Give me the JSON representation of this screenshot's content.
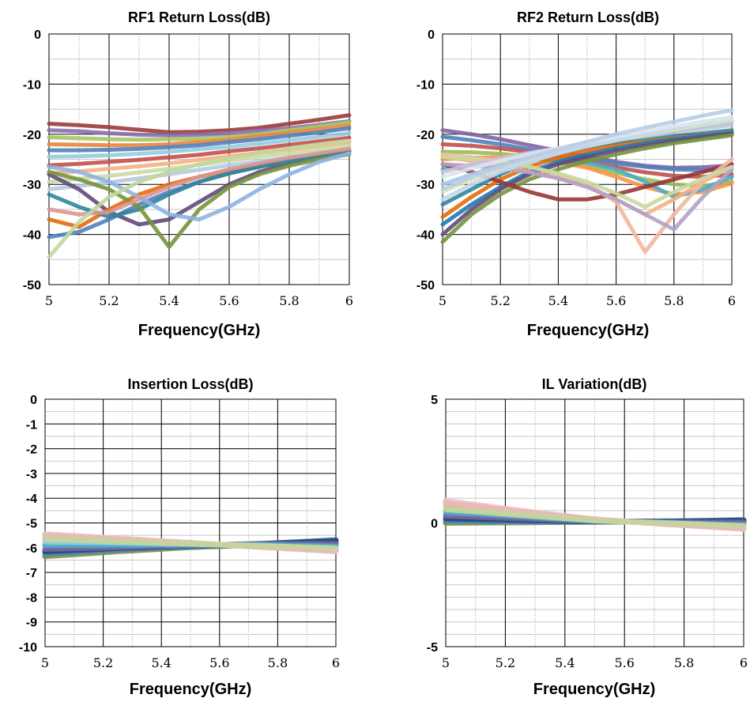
{
  "chart_data": [
    {
      "type": "line",
      "title": "RF1 Return Loss(dB)",
      "xlabel": "Frequency(GHz)",
      "ylabel": "",
      "xlim": [
        5,
        6
      ],
      "ylim": [
        -50,
        0
      ],
      "x_ticks": [
        5,
        5.2,
        5.4,
        5.6,
        5.8,
        6
      ],
      "x_tick_labels": [
        "5",
        "5.2",
        "5.4",
        "5.6",
        "5.8",
        "6"
      ],
      "y_ticks": [
        0,
        -10,
        -20,
        -30,
        -40,
        -50
      ],
      "y_tick_labels": [
        "0",
        "-10",
        "-20",
        "-30",
        "-40",
        "-50"
      ],
      "grid": true,
      "legend": "none",
      "x": [
        5,
        5.1,
        5.2,
        5.3,
        5.4,
        5.5,
        5.6,
        5.7,
        5.8,
        5.9,
        6
      ],
      "series": [
        {
          "values": [
            -17.9,
            -18.2,
            -18.6,
            -19.1,
            -19.6,
            -19.5,
            -19.2,
            -18.7,
            -17.9,
            -17.1,
            -16.2
          ],
          "color": "#9b3b3b"
        },
        {
          "values": [
            -19.2,
            -19.4,
            -19.8,
            -20.1,
            -20.2,
            -20.1,
            -19.8,
            -19.3,
            -18.8,
            -18.1,
            -17.4
          ],
          "color": "#8a6fae"
        },
        {
          "values": [
            -20.6,
            -20.8,
            -21.0,
            -21.1,
            -21.0,
            -20.9,
            -20.5,
            -20.0,
            -19.2,
            -18.4,
            -17.6
          ],
          "color": "#a7c464"
        },
        {
          "values": [
            -22.0,
            -22.1,
            -22.2,
            -22.2,
            -22.0,
            -21.6,
            -21.1,
            -20.4,
            -19.7,
            -19.0,
            -18.3
          ],
          "color": "#e9853d"
        },
        {
          "values": [
            -23.2,
            -23.2,
            -23.1,
            -22.9,
            -22.6,
            -22.2,
            -21.6,
            -21.0,
            -20.3,
            -19.6,
            -18.8
          ],
          "color": "#4f81bd"
        },
        {
          "values": [
            -24.5,
            -24.4,
            -24.2,
            -23.9,
            -23.5,
            -23.0,
            -22.5,
            -21.9,
            -21.2,
            -20.5,
            -19.8
          ],
          "color": "#93cddd"
        },
        {
          "values": [
            -26.2,
            -25.9,
            -25.5,
            -25.1,
            -24.6,
            -24.1,
            -23.4,
            -22.8,
            -22.1,
            -21.4,
            -20.7
          ],
          "color": "#c0504d"
        },
        {
          "values": [
            -27.8,
            -27.4,
            -26.9,
            -26.4,
            -25.8,
            -25.1,
            -24.4,
            -23.7,
            -23.0,
            -22.3,
            -21.6
          ],
          "color": "#f4b183"
        },
        {
          "values": [
            -29.5,
            -28.9,
            -28.3,
            -27.6,
            -26.9,
            -26.1,
            -25.3,
            -24.5,
            -23.8,
            -23.0,
            -22.3
          ],
          "color": "#c9dba4"
        },
        {
          "values": [
            -31.0,
            -30.3,
            -29.6,
            -28.8,
            -28.0,
            -27.1,
            -26.2,
            -25.4,
            -24.6,
            -23.8,
            -23.0
          ],
          "color": "#b7c9e2"
        },
        {
          "values": [
            -28.0,
            -31.0,
            -35.5,
            -38.0,
            -37.0,
            -33.5,
            -30.0,
            -27.5,
            -25.8,
            -24.5,
            -23.5
          ],
          "color": "#604a7b"
        },
        {
          "values": [
            -40.5,
            -39.5,
            -37.0,
            -34.0,
            -31.5,
            -29.5,
            -27.8,
            -26.5,
            -25.3,
            -24.3,
            -23.4
          ],
          "color": "#4f81bd"
        },
        {
          "values": [
            -37.0,
            -38.5,
            -35.0,
            -32.0,
            -30.0,
            -28.5,
            -27.3,
            -26.2,
            -25.2,
            -24.3,
            -23.5
          ],
          "color": "#e46c0a"
        },
        {
          "values": [
            -32.0,
            -34.5,
            -36.5,
            -35.0,
            -32.0,
            -29.5,
            -27.8,
            -26.5,
            -25.3,
            -24.3,
            -23.4
          ],
          "color": "#31859c"
        },
        {
          "values": [
            -27.5,
            -29.0,
            -31.0,
            -34.5,
            -42.5,
            -35.0,
            -30.5,
            -28.0,
            -26.3,
            -25.0,
            -24.0
          ],
          "color": "#77933c"
        },
        {
          "values": [
            -26.5,
            -27.5,
            -29.5,
            -32.5,
            -36.0,
            -37.0,
            -34.5,
            -31.0,
            -28.0,
            -25.5,
            -23.8
          ],
          "color": "#8db3e2"
        },
        {
          "values": [
            -35.0,
            -36.0,
            -35.5,
            -33.0,
            -30.5,
            -28.5,
            -27.0,
            -25.8,
            -24.7,
            -23.8,
            -22.9
          ],
          "color": "#d99694"
        },
        {
          "values": [
            -44.5,
            -37.5,
            -32.5,
            -29.5,
            -27.5,
            -26.0,
            -24.8,
            -23.7,
            -22.8,
            -22.0,
            -21.3
          ],
          "color": "#c3d69b"
        }
      ]
    },
    {
      "type": "line",
      "title": "RF2 Return Loss(dB)",
      "xlabel": "Frequency(GHz)",
      "ylabel": "",
      "xlim": [
        5,
        6
      ],
      "ylim": [
        -50,
        0
      ],
      "x_ticks": [
        5,
        5.2,
        5.4,
        5.6,
        5.8,
        6
      ],
      "x_tick_labels": [
        "5",
        "5.2",
        "5.4",
        "5.6",
        "5.8",
        "6"
      ],
      "y_ticks": [
        0,
        -10,
        -20,
        -30,
        -40,
        -50
      ],
      "y_tick_labels": [
        "0",
        "-10",
        "-20",
        "-30",
        "-40",
        "-50"
      ],
      "grid": true,
      "legend": "none",
      "x": [
        5,
        5.1,
        5.2,
        5.3,
        5.4,
        5.5,
        5.6,
        5.7,
        5.8,
        5.9,
        6
      ],
      "series": [
        {
          "values": [
            -19.2,
            -20.0,
            -21.0,
            -22.2,
            -23.3,
            -24.4,
            -25.5,
            -26.3,
            -26.7,
            -26.6,
            -26.2
          ],
          "color": "#8064a2"
        },
        {
          "values": [
            -20.5,
            -21.2,
            -22.0,
            -23.0,
            -24.0,
            -24.9,
            -25.8,
            -26.5,
            -27.0,
            -27.2,
            -27.0
          ],
          "color": "#4f81bd"
        },
        {
          "values": [
            -22.0,
            -22.3,
            -22.8,
            -23.6,
            -24.5,
            -25.5,
            -26.6,
            -27.6,
            -28.3,
            -28.5,
            -28.0
          ],
          "color": "#c0504d"
        },
        {
          "values": [
            -23.5,
            -23.6,
            -23.9,
            -24.5,
            -25.3,
            -26.4,
            -27.7,
            -29.0,
            -30.0,
            -30.3,
            -29.5
          ],
          "color": "#9bbb59"
        },
        {
          "values": [
            -25.0,
            -24.7,
            -24.6,
            -24.8,
            -25.5,
            -26.7,
            -28.5,
            -30.5,
            -32.0,
            -31.5,
            -29.8
          ],
          "color": "#f79646"
        },
        {
          "values": [
            -27.0,
            -26.1,
            -25.4,
            -25.0,
            -25.1,
            -25.7,
            -27.0,
            -29.5,
            -32.5,
            -31.0,
            -28.5
          ],
          "color": "#4bacc6"
        },
        {
          "values": [
            -34.0,
            -31.0,
            -28.0,
            -25.5,
            -23.8,
            -22.6,
            -21.7,
            -21.0,
            -20.4,
            -19.8,
            -19.2
          ],
          "color": "#31859c"
        },
        {
          "values": [
            -36.5,
            -32.5,
            -29.0,
            -26.5,
            -24.6,
            -23.3,
            -22.3,
            -21.5,
            -20.8,
            -20.2,
            -19.6
          ],
          "color": "#e46c0a"
        },
        {
          "values": [
            -38.0,
            -34.0,
            -30.5,
            -27.5,
            -25.5,
            -24.0,
            -22.8,
            -21.8,
            -21.0,
            -20.3,
            -19.7
          ],
          "color": "#1f7ab0"
        },
        {
          "values": [
            -40.0,
            -35.0,
            -31.0,
            -28.0,
            -26.0,
            -24.5,
            -23.3,
            -22.3,
            -21.4,
            -20.6,
            -19.9
          ],
          "color": "#604a7b"
        },
        {
          "values": [
            -41.5,
            -36.0,
            -32.0,
            -29.0,
            -27.0,
            -25.3,
            -24.0,
            -22.8,
            -21.8,
            -21.0,
            -20.2
          ],
          "color": "#77933c"
        },
        {
          "values": [
            -26.0,
            -27.5,
            -29.5,
            -31.5,
            -33.0,
            -33.0,
            -32.0,
            -30.5,
            -29.0,
            -27.5,
            -26.0
          ],
          "color": "#953735"
        },
        {
          "values": [
            -24.5,
            -25.3,
            -26.3,
            -27.5,
            -28.8,
            -30.5,
            -33.0,
            -36.0,
            -33.0,
            -29.5,
            -26.5
          ],
          "color": "#f4b183"
        },
        {
          "values": [
            -24.0,
            -24.6,
            -25.4,
            -26.5,
            -28.0,
            -30.0,
            -33.5,
            -43.5,
            -36.0,
            -29.5,
            -25.0
          ],
          "color": "#f2b8a0"
        },
        {
          "values": [
            -26.0,
            -26.3,
            -26.8,
            -27.6,
            -28.8,
            -30.5,
            -33.0,
            -36.0,
            -39.0,
            -32.5,
            -27.0
          ],
          "color": "#b2a1c7"
        },
        {
          "values": [
            -24.5,
            -24.9,
            -25.5,
            -26.5,
            -27.8,
            -29.5,
            -31.8,
            -34.5,
            -31.5,
            -28.8,
            -26.5
          ],
          "color": "#c6d9a0"
        },
        {
          "values": [
            -27.5,
            -26.0,
            -24.8,
            -23.7,
            -22.8,
            -21.9,
            -21.1,
            -20.4,
            -19.6,
            -18.9,
            -18.2
          ],
          "color": "#ccc1da"
        },
        {
          "values": [
            -30.0,
            -28.0,
            -26.3,
            -24.8,
            -23.5,
            -22.3,
            -21.2,
            -20.2,
            -19.3,
            -18.4,
            -17.6
          ],
          "color": "#a5c8e4"
        },
        {
          "values": [
            -31.5,
            -29.0,
            -27.0,
            -25.3,
            -23.8,
            -22.4,
            -21.2,
            -20.1,
            -19.1,
            -18.1,
            -17.2
          ],
          "color": "#d7e4bd"
        },
        {
          "values": [
            -33.0,
            -30.0,
            -27.5,
            -25.5,
            -23.8,
            -22.3,
            -21.0,
            -19.8,
            -18.7,
            -17.6,
            -16.6
          ],
          "color": "#c5d5ea"
        },
        {
          "values": [
            -28.5,
            -26.8,
            -25.3,
            -24.0,
            -22.8,
            -21.6,
            -20.5,
            -19.4,
            -18.4,
            -17.5,
            -16.6
          ],
          "color": "#dce6f2"
        },
        {
          "values": [
            -31.0,
            -28.5,
            -26.5,
            -24.6,
            -23.0,
            -21.5,
            -20.0,
            -18.7,
            -17.5,
            -16.3,
            -15.2
          ],
          "color": "#b9cde5"
        }
      ]
    },
    {
      "type": "line",
      "title": "Insertion Loss(dB)",
      "xlabel": "Frequency(GHz)",
      "ylabel": "",
      "xlim": [
        5,
        6
      ],
      "ylim": [
        -10,
        0
      ],
      "x_ticks": [
        5,
        5.2,
        5.4,
        5.6,
        5.8,
        6
      ],
      "x_tick_labels": [
        "5",
        "5.2",
        "5.4",
        "5.6",
        "5.8",
        "6"
      ],
      "y_ticks": [
        0,
        -1,
        -2,
        -3,
        -4,
        -5,
        -6,
        -7,
        -8,
        -9,
        -10
      ],
      "y_tick_labels": [
        "0",
        "-1",
        "-2",
        "-3",
        "-4",
        "-5",
        "-6",
        "-7",
        "-8",
        "-9",
        "-10"
      ],
      "grid": true,
      "legend": "none",
      "x": [
        5,
        5.25,
        5.5,
        5.75,
        6
      ],
      "series": [
        {
          "values": [
            -6.35,
            -6.15,
            -5.98,
            -5.88,
            -5.8
          ],
          "color": "#77933c"
        },
        {
          "values": [
            -6.25,
            -6.08,
            -5.95,
            -5.86,
            -5.75
          ],
          "color": "#4f81bd"
        },
        {
          "values": [
            -6.15,
            -6.02,
            -5.92,
            -5.84,
            -5.7
          ],
          "color": "#1f497d"
        },
        {
          "values": [
            -6.05,
            -5.98,
            -5.9,
            -5.85,
            -5.85
          ],
          "color": "#8064a2"
        },
        {
          "values": [
            -5.9,
            -5.9,
            -5.88,
            -5.88,
            -5.95
          ],
          "color": "#4bacc6"
        },
        {
          "values": [
            -5.75,
            -5.8,
            -5.85,
            -5.92,
            -6.05
          ],
          "color": "#93cddd"
        },
        {
          "values": [
            -5.6,
            -5.7,
            -5.82,
            -5.95,
            -6.1
          ],
          "color": "#f4b183"
        },
        {
          "values": [
            -5.45,
            -5.62,
            -5.8,
            -5.98,
            -6.15
          ],
          "color": "#f2c4c4"
        },
        {
          "values": [
            -5.5,
            -5.66,
            -5.82,
            -5.97,
            -6.12
          ],
          "color": "#e6b9b8"
        },
        {
          "values": [
            -5.65,
            -5.75,
            -5.84,
            -5.93,
            -6.02
          ],
          "color": "#c3d69b"
        }
      ]
    },
    {
      "type": "line",
      "title": "IL Variation(dB)",
      "xlabel": "Frequency(GHz)",
      "ylabel": "",
      "xlim": [
        5,
        6
      ],
      "ylim": [
        -5,
        5
      ],
      "x_ticks": [
        5,
        5.2,
        5.4,
        5.6,
        5.8,
        6
      ],
      "x_tick_labels": [
        "5",
        "5.2",
        "5.4",
        "5.6",
        "5.8",
        "6"
      ],
      "y_ticks": [
        5,
        0,
        -5
      ],
      "y_tick_labels": [
        "5",
        "0",
        "-5"
      ],
      "grid": true,
      "legend": "none",
      "x": [
        5,
        5.25,
        5.5,
        5.75,
        6
      ],
      "series": [
        {
          "values": [
            0.0,
            0.02,
            0.04,
            0.06,
            0.08
          ],
          "color": "#77933c"
        },
        {
          "values": [
            0.08,
            0.06,
            0.05,
            0.07,
            0.12
          ],
          "color": "#4f81bd"
        },
        {
          "values": [
            0.18,
            0.12,
            0.06,
            0.05,
            0.1
          ],
          "color": "#1f497d"
        },
        {
          "values": [
            0.3,
            0.18,
            0.07,
            0.03,
            0.02
          ],
          "color": "#8064a2"
        },
        {
          "values": [
            0.45,
            0.26,
            0.09,
            0.0,
            -0.08
          ],
          "color": "#4bacc6"
        },
        {
          "values": [
            0.6,
            0.34,
            0.11,
            -0.02,
            -0.15
          ],
          "color": "#93cddd"
        },
        {
          "values": [
            0.75,
            0.42,
            0.13,
            -0.04,
            -0.2
          ],
          "color": "#f4b183"
        },
        {
          "values": [
            0.9,
            0.5,
            0.15,
            -0.06,
            -0.25
          ],
          "color": "#f2c4c4"
        },
        {
          "values": [
            0.82,
            0.46,
            0.14,
            -0.05,
            -0.22
          ],
          "color": "#e6b9b8"
        },
        {
          "values": [
            0.55,
            0.32,
            0.1,
            -0.01,
            -0.12
          ],
          "color": "#c3d69b"
        }
      ]
    }
  ]
}
